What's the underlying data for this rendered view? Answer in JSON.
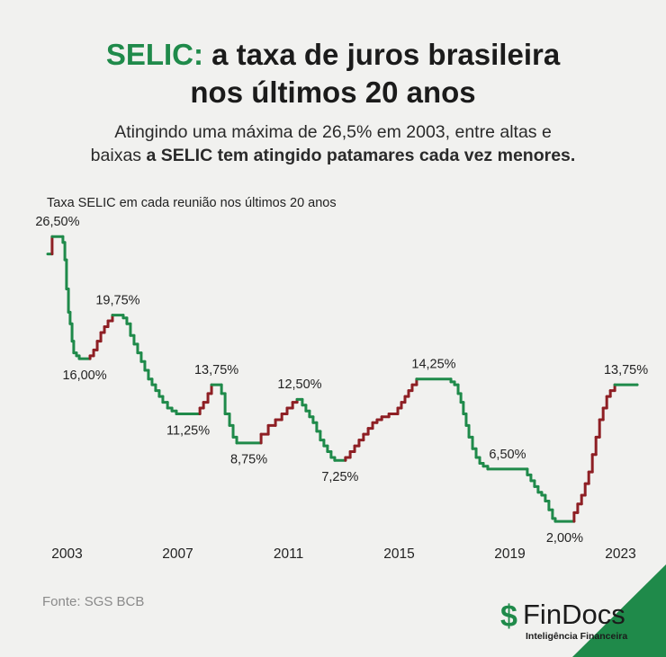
{
  "title_highlight": "SELIC:",
  "title": [
    "a taxa de juros brasileira",
    "nos últimos 20 anos"
  ],
  "subtitle": [
    "Atingindo uma máxima de 26,5% em 2003, entre altas e",
    "baixas",
    "a SELIC tem atingido patamares cada vez menores."
  ],
  "source": "Fonte: SGS BCB",
  "brand": {
    "name": "FinDocs",
    "tagline": "Inteligência Financeira"
  },
  "chart_data": {
    "type": "step",
    "axis_label": "Taxa SELIC em cada reunião nos últimos 20 anos",
    "color_up": "#8e1f24",
    "color_down": "#1f8a4a",
    "xlim": [
      2002.3,
      2023.6
    ],
    "xticks": [
      2003,
      2007,
      2011,
      2015,
      2019,
      2023
    ],
    "ylim": [
      0,
      30
    ],
    "x": [
      2002.3,
      2002.46,
      2002.85,
      2002.92,
      2002.98,
      2003.05,
      2003.11,
      2003.18,
      2003.24,
      2003.34,
      2003.44,
      2003.83,
      2003.96,
      2004.09,
      2004.22,
      2004.35,
      2004.48,
      2004.64,
      2005.03,
      2005.16,
      2005.29,
      2005.42,
      2005.55,
      2005.68,
      2005.81,
      2005.94,
      2006.07,
      2006.2,
      2006.33,
      2006.46,
      2006.63,
      2006.79,
      2006.95,
      2007.8,
      2007.93,
      2008.09,
      2008.22,
      2008.58,
      2008.71,
      2008.87,
      2009.0,
      2009.13,
      2010.01,
      2010.27,
      2010.53,
      2010.76,
      2010.95,
      2011.15,
      2011.31,
      2011.5,
      2011.63,
      2011.76,
      2011.89,
      2012.02,
      2012.15,
      2012.28,
      2012.41,
      2012.54,
      2012.67,
      2013.06,
      2013.23,
      2013.39,
      2013.55,
      2013.71,
      2013.88,
      2014.04,
      2014.2,
      2014.37,
      2014.63,
      2014.95,
      2015.08,
      2015.21,
      2015.34,
      2015.47,
      2015.63,
      2016.87,
      2017.0,
      2017.13,
      2017.23,
      2017.32,
      2017.42,
      2017.52,
      2017.65,
      2017.78,
      2017.91,
      2018.04,
      2018.2,
      2019.63,
      2019.76,
      2019.89,
      2020.02,
      2020.15,
      2020.28,
      2020.41,
      2020.54,
      2020.64,
      2021.32,
      2021.45,
      2021.59,
      2021.72,
      2021.85,
      2021.98,
      2022.11,
      2022.24,
      2022.37,
      2022.5,
      2022.63,
      2022.79,
      2023.6
    ],
    "values": [
      25,
      26.5,
      26,
      24.5,
      22,
      20,
      19,
      17.5,
      16.5,
      16.25,
      16,
      16.25,
      16.75,
      17.5,
      18.25,
      18.75,
      19.25,
      19.75,
      19.5,
      19,
      18,
      17.25,
      16.5,
      15.75,
      15,
      14.25,
      13.75,
      13.25,
      12.75,
      12.25,
      11.75,
      11.5,
      11.25,
      11.75,
      12.25,
      13,
      13.75,
      13,
      11.25,
      10.25,
      9.25,
      8.75,
      9.5,
      10.25,
      10.75,
      11.25,
      11.75,
      12.25,
      12.5,
      12,
      11.5,
      11,
      10.5,
      9.75,
      9,
      8.5,
      8,
      7.5,
      7.25,
      7.5,
      8,
      8.5,
      9,
      9.5,
      10,
      10.5,
      10.75,
      11,
      11.25,
      11.75,
      12.25,
      12.75,
      13.25,
      13.75,
      14.25,
      14,
      13.75,
      13,
      12.25,
      11.25,
      10.25,
      9.25,
      8.25,
      7.5,
      7,
      6.75,
      6.5,
      6,
      5.5,
      5,
      4.5,
      4.25,
      3.75,
      3,
      2.25,
      2,
      2.75,
      3.5,
      4.25,
      5.25,
      6.25,
      7.75,
      9.25,
      10.75,
      11.75,
      12.75,
      13.25,
      13.75,
      13.75
    ],
    "value_labels": [
      null,
      "26,50%",
      null,
      null,
      null,
      null,
      null,
      null,
      null,
      null,
      "16,00%",
      null,
      null,
      null,
      null,
      null,
      null,
      "19,75%",
      null,
      null,
      null,
      null,
      null,
      null,
      null,
      null,
      null,
      null,
      null,
      null,
      null,
      null,
      "11,25%",
      null,
      null,
      null,
      "13,75%",
      null,
      null,
      null,
      null,
      "8,75%",
      null,
      null,
      null,
      null,
      null,
      null,
      "12,50%",
      null,
      null,
      null,
      null,
      null,
      null,
      null,
      null,
      null,
      "7,25%",
      null,
      null,
      null,
      null,
      null,
      null,
      null,
      null,
      null,
      null,
      null,
      null,
      null,
      null,
      null,
      "14,25%",
      null,
      null,
      null,
      null,
      null,
      null,
      null,
      null,
      null,
      null,
      null,
      "6,50%",
      null,
      null,
      null,
      null,
      null,
      null,
      null,
      null,
      "2,00%",
      null,
      null,
      null,
      null,
      null,
      null,
      null,
      null,
      null,
      null,
      null,
      "13,75%",
      null
    ]
  }
}
